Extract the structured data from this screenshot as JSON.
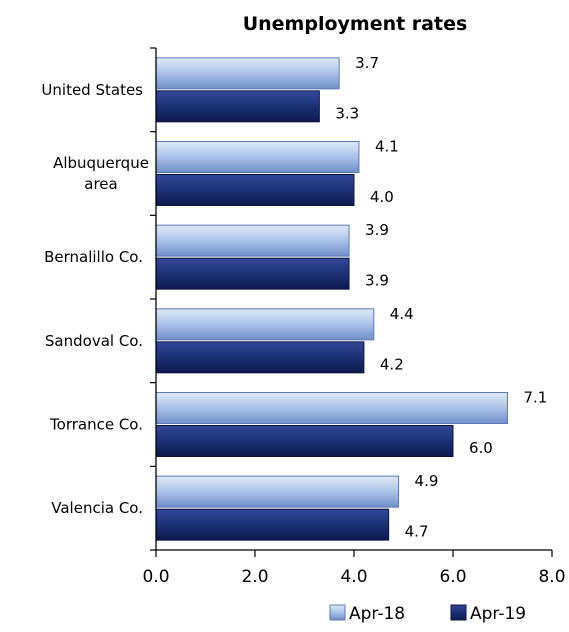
{
  "chart_data": {
    "type": "bar",
    "orientation": "horizontal",
    "title": "Unemployment rates",
    "categories": [
      "United States",
      "Albuquerque area",
      "Bernalillo Co.",
      "Sandoval Co.",
      "Torrance Co.",
      "Valencia Co."
    ],
    "category_lines": [
      [
        "United States"
      ],
      [
        "Albuquerque",
        "area"
      ],
      [
        "Bernalillo Co."
      ],
      [
        "Sandoval Co."
      ],
      [
        "Torrance Co."
      ],
      [
        "Valencia Co."
      ]
    ],
    "series": [
      {
        "name": "Apr-18",
        "values": [
          3.7,
          4.1,
          3.9,
          4.4,
          7.1,
          4.9
        ],
        "labels": [
          "3.7",
          "4.1",
          "3.9",
          "4.4",
          "7.1",
          "4.9"
        ],
        "color": "#9ab4e0"
      },
      {
        "name": "Apr-19",
        "values": [
          3.3,
          4.0,
          3.9,
          4.2,
          6.0,
          4.7
        ],
        "labels": [
          "3.3",
          "4.0",
          "3.9",
          "4.2",
          "6.0",
          "4.7"
        ],
        "color": "#1b2f73"
      }
    ],
    "xlim": [
      0,
      8
    ],
    "xticks": [
      "0.0",
      "2.0",
      "4.0",
      "6.0",
      "8.0"
    ],
    "grid": false,
    "legend": "bottom-right"
  }
}
